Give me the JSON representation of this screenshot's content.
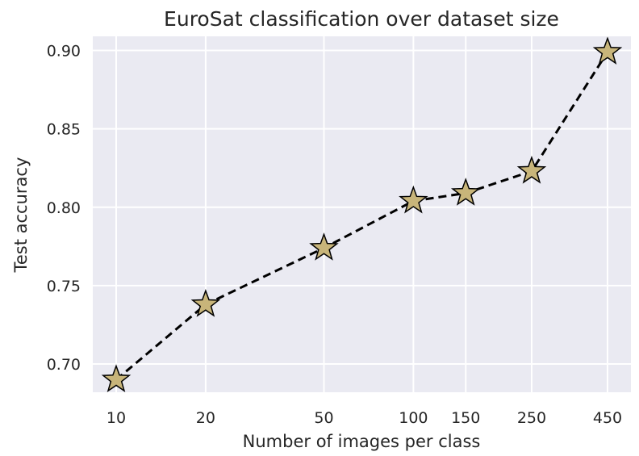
{
  "chart_data": {
    "type": "line",
    "title": "EuroSat classification over dataset size",
    "xlabel": "Number of images per class",
    "ylabel": "Test accuracy",
    "x_scale": "log",
    "x": [
      10,
      20,
      50,
      100,
      150,
      250,
      450
    ],
    "series": [
      {
        "values": [
          0.69,
          0.738,
          0.774,
          0.804,
          0.809,
          0.823,
          0.899
        ]
      }
    ],
    "xticks": [
      "10",
      "20",
      "50",
      "100",
      "150",
      "250",
      "450"
    ],
    "yticks": [
      "0.70",
      "0.75",
      "0.80",
      "0.85",
      "0.90"
    ],
    "ylim": [
      0.682,
      0.909
    ],
    "grid": true,
    "colors": {
      "plot_background": "#eaeaf2",
      "grid": "#ffffff",
      "line": "#000000",
      "marker_fill": "#c8b57a",
      "marker_edge": "#000000"
    },
    "line_style": "dashed",
    "marker": "star"
  }
}
